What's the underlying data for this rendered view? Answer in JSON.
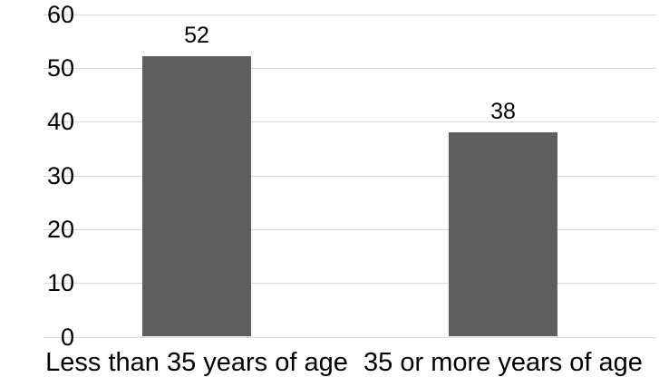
{
  "chart_data": {
    "type": "bar",
    "title": "",
    "xlabel": "",
    "ylabel": "",
    "categories": [
      "Less than 35 years of age",
      "35 or more years of age"
    ],
    "values": [
      52,
      38
    ],
    "data_labels": [
      "52",
      "38"
    ],
    "ylim": [
      0,
      60
    ],
    "ytick_interval": 10,
    "yticks": [
      0,
      10,
      20,
      30,
      40,
      50,
      60
    ],
    "grid": "horizontal",
    "legend_position": "none",
    "bar_color": "#5e5e5e",
    "gridline_color": "#d9d9d9",
    "text_color": "#000000",
    "background_color": "#ffffff"
  }
}
